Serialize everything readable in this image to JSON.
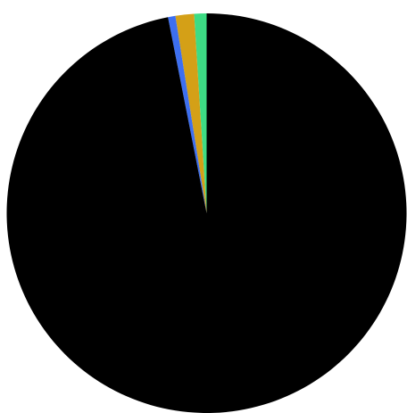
{
  "chart_data": {
    "type": "pie",
    "title": "",
    "start": "12 o'clock",
    "direction": "counter-clockwise",
    "slices": [
      {
        "label": "",
        "value": 1.0,
        "color": "#3ddc84"
      },
      {
        "label": "",
        "value": 1.5,
        "color": "#d4a017"
      },
      {
        "label": "",
        "value": 0.6,
        "color": "#3d6ff0"
      },
      {
        "label": "",
        "value": 96.9,
        "color": "#000000"
      }
    ]
  }
}
